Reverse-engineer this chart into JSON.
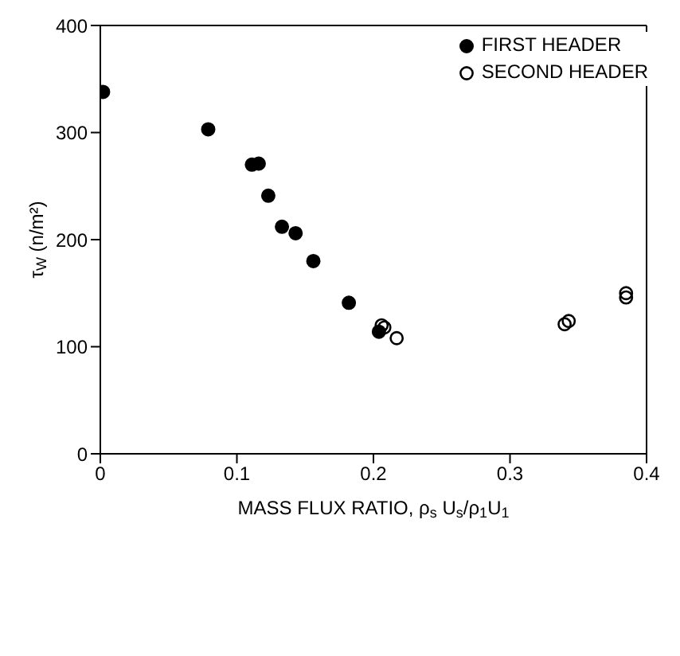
{
  "chart_data": {
    "type": "scatter",
    "xlabel": "MASS FLUX RATIO,  ρ$_{s}$ U$_{s}$/ρ$_{1}$U$_{1}$",
    "ylabel": "τ$_{W}$ (n/m²)",
    "xlim": [
      0,
      0.4
    ],
    "xticks": [
      {
        "value": 0,
        "label": "0"
      },
      0.1,
      0.2,
      0.3,
      0.4
    ],
    "ylim": [
      0,
      400
    ],
    "yticks": [
      0,
      100,
      200,
      300,
      400
    ],
    "legend": "top right",
    "series": [
      {
        "name": "FIRST HEADER",
        "color": "#000000",
        "marker": "circle",
        "x": [
          0.002,
          0.079,
          0.111,
          0.116,
          0.123,
          0.133,
          0.143,
          0.156,
          0.182,
          0.204
        ],
        "values": [
          338,
          303,
          270,
          271,
          241,
          212,
          206,
          180,
          141,
          114
        ]
      },
      {
        "name": "SECOND HEADER",
        "color": "#000000",
        "marker": "open_circle",
        "x": [
          0.206,
          0.208,
          0.217,
          0.34,
          0.343,
          0.385,
          0.385
        ],
        "values": [
          120,
          118,
          108,
          121,
          124,
          150,
          146
        ]
      }
    ]
  }
}
